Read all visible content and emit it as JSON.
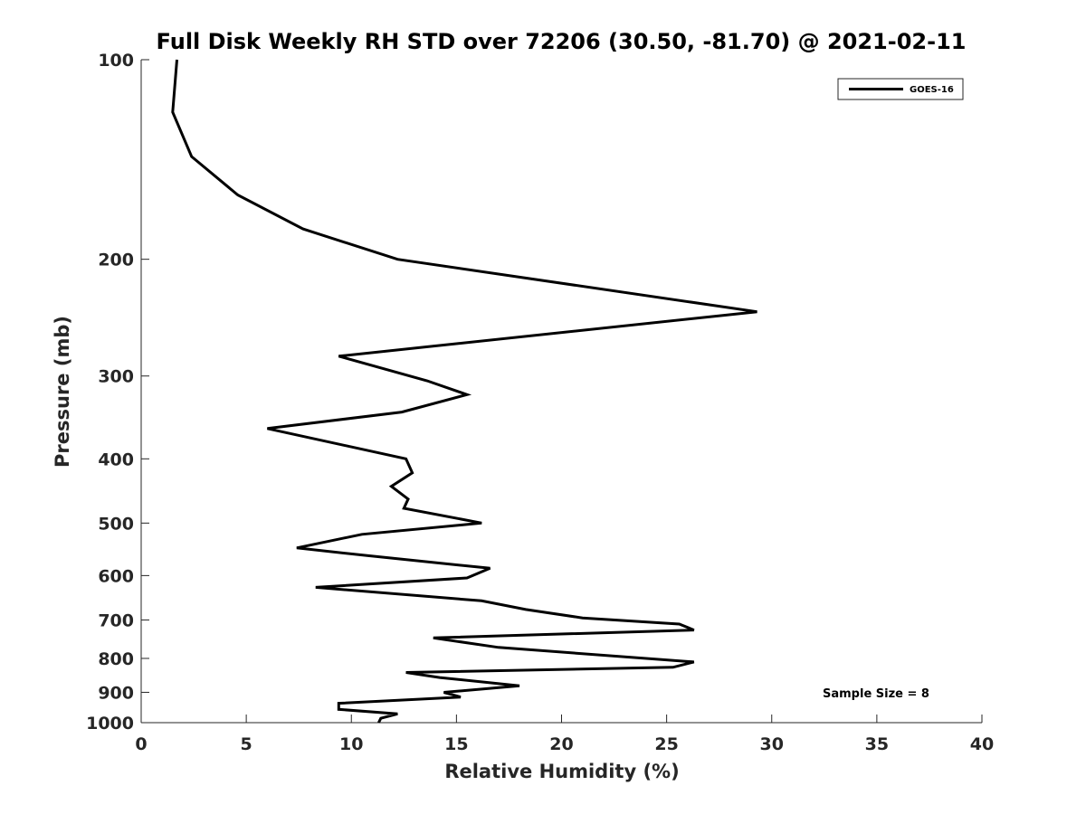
{
  "chart_data": {
    "type": "line",
    "title": "Full Disk Weekly RH STD over 72206 (30.50, -81.70) @ 2021-02-11",
    "xlabel": "Relative Humidity (%)",
    "ylabel": "Pressure (mb)",
    "xlim": [
      0,
      40
    ],
    "ylim": [
      100,
      1000
    ],
    "yscale": "log",
    "y_reversed": true,
    "grid": false,
    "xticks": [
      0,
      5,
      10,
      15,
      20,
      25,
      30,
      35,
      40
    ],
    "yticks": [
      100,
      200,
      300,
      400,
      500,
      600,
      700,
      800,
      900,
      1000
    ],
    "legend_position": "top-right",
    "annotation": "Sample Size = 8",
    "line_color": "#000000",
    "series": [
      {
        "name": "GOES-16",
        "x": [
          1.7,
          1.5,
          2.4,
          4.6,
          7.7,
          12.2,
          29.3,
          9.4,
          13.6,
          15.5,
          12.4,
          6.0,
          12.6,
          12.9,
          11.9,
          12.7,
          12.5,
          16.2,
          10.5,
          7.4,
          10.8,
          16.6,
          15.5,
          8.3,
          16.2,
          18.3,
          21.0,
          25.6,
          26.3,
          13.9,
          17.0,
          26.3,
          25.3,
          12.6,
          14.2,
          18.0,
          14.4,
          15.2,
          9.4,
          9.4,
          12.2,
          11.4,
          11.3
        ],
        "y": [
          100,
          120,
          140,
          160,
          180,
          200,
          240,
          280,
          305,
          320,
          340,
          360,
          400,
          420,
          440,
          460,
          475,
          500,
          520,
          545,
          560,
          585,
          605,
          625,
          655,
          675,
          695,
          710,
          725,
          745,
          770,
          810,
          825,
          840,
          855,
          880,
          900,
          915,
          935,
          955,
          970,
          985,
          1000
        ]
      }
    ]
  }
}
